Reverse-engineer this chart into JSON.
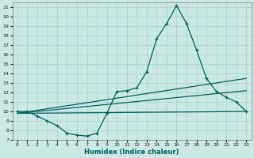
{
  "xlabel": "Humidex (Indice chaleur)",
  "background_color": "#cce8e4",
  "grid_color": "#aad4d0",
  "line_color": "#006060",
  "xlim": [
    -0.5,
    23.5
  ],
  "ylim": [
    7,
    21.5
  ],
  "xticks": [
    0,
    1,
    2,
    3,
    4,
    5,
    6,
    7,
    8,
    9,
    10,
    11,
    12,
    13,
    14,
    15,
    16,
    17,
    18,
    19,
    20,
    21,
    22,
    23
  ],
  "yticks": [
    7,
    8,
    9,
    10,
    11,
    12,
    13,
    14,
    15,
    16,
    17,
    18,
    19,
    20,
    21
  ],
  "line1_x": [
    0,
    1,
    2,
    3,
    4,
    5,
    6,
    7,
    8,
    9,
    10,
    11,
    12,
    13,
    14,
    15,
    16,
    17,
    18,
    19,
    20,
    21,
    22,
    23
  ],
  "line1_y": [
    10.0,
    10.0,
    9.5,
    9.0,
    8.5,
    7.7,
    7.5,
    7.4,
    7.7,
    9.8,
    12.1,
    12.2,
    12.5,
    14.2,
    17.7,
    19.3,
    21.2,
    19.3,
    16.5,
    13.5,
    12.1,
    11.5,
    11.0,
    10.0
  ],
  "line2_x": [
    0,
    23
  ],
  "line2_y": [
    9.8,
    13.5
  ],
  "line3_x": [
    0,
    23
  ],
  "line3_y": [
    9.8,
    12.2
  ],
  "line4_x": [
    0,
    23
  ],
  "line4_y": [
    9.8,
    10.0
  ]
}
